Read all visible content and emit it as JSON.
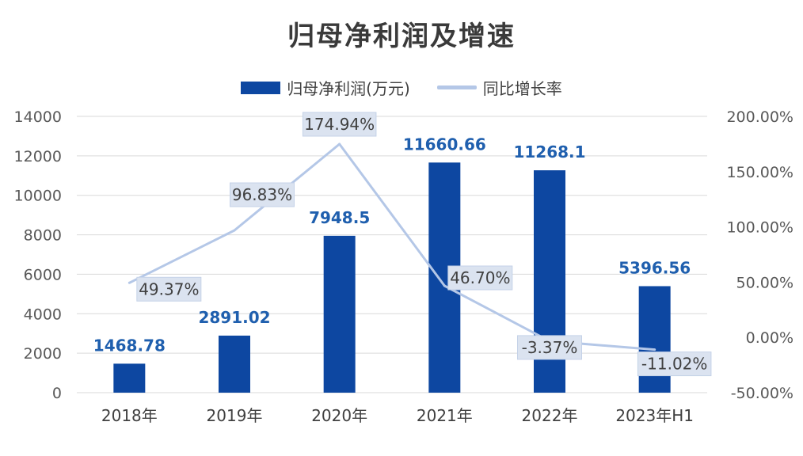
{
  "chart_data": {
    "type": "bar",
    "title": "归母净利润及增速",
    "categories": [
      "2018年",
      "2019年",
      "2020年",
      "2021年",
      "2022年",
      "2023年H1"
    ],
    "series": [
      {
        "name": "归母净利润(万元)",
        "type": "bar",
        "axis": "left",
        "values": [
          1468.78,
          2891.02,
          7948.5,
          11660.66,
          11268.1,
          5396.56
        ],
        "labels": [
          "1468.78",
          "2891.02",
          "7948.5",
          "11660.66",
          "11268.1",
          "5396.56"
        ],
        "color": "#0d47a1"
      },
      {
        "name": "同比增长率",
        "type": "line",
        "axis": "right",
        "values": [
          49.37,
          96.83,
          174.94,
          46.7,
          -3.37,
          -11.02
        ],
        "labels": [
          "49.37%",
          "96.83%",
          "174.94%",
          "46.70%",
          "-3.37%",
          "-11.02%"
        ],
        "color": "#b4c7e7"
      }
    ],
    "y_left": {
      "ylim": [
        0,
        14000
      ],
      "ticks": [
        "0",
        "2000",
        "4000",
        "6000",
        "8000",
        "10000",
        "12000",
        "14000"
      ],
      "tick_values": [
        0,
        2000,
        4000,
        6000,
        8000,
        10000,
        12000,
        14000
      ]
    },
    "y_right": {
      "ylim": [
        -50,
        200
      ],
      "ticks": [
        "-50.00%",
        "0.00%",
        "50.00%",
        "100.00%",
        "150.00%",
        "200.00%"
      ],
      "tick_values": [
        -50,
        0,
        50,
        100,
        150,
        200
      ]
    },
    "legend_position": "top-center",
    "grid": true
  }
}
